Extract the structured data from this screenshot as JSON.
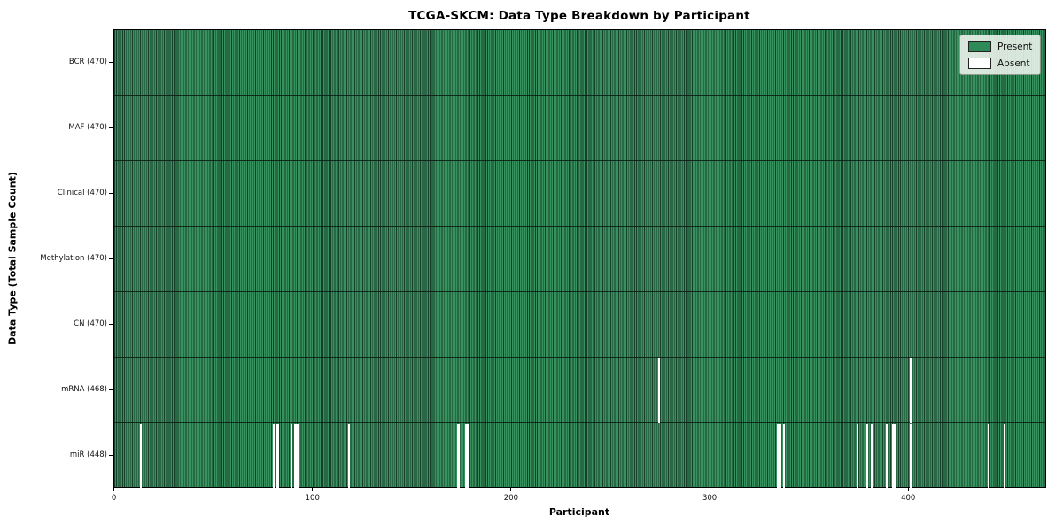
{
  "chart_data": {
    "type": "heatmap",
    "title": "TCGA-SKCM: Data Type Breakdown by Participant",
    "xlabel": "Participant",
    "ylabel": "Data Type (Total Sample Count)",
    "n_participants": 470,
    "x_range": [
      0,
      470
    ],
    "xticks": [
      0,
      100,
      200,
      300,
      400
    ],
    "grid": false,
    "colors": {
      "present": "#2e8b57",
      "absent": "#ffffff",
      "bar_edge": "#16402a",
      "row_divider": "#1a291e",
      "legend_bg": "#eef2ec",
      "legend_border": "#8f9a8f"
    },
    "legend": {
      "position": "upper-right",
      "entries": [
        {
          "label": "Present",
          "color": "#2e8b57"
        },
        {
          "label": "Absent",
          "color": "#ffffff"
        }
      ]
    },
    "rows": [
      {
        "label": "BCR (470)",
        "data_type": "BCR",
        "present_count": 470,
        "absent_participants": []
      },
      {
        "label": "MAF (470)",
        "data_type": "MAF",
        "present_count": 470,
        "absent_participants": []
      },
      {
        "label": "Clinical (470)",
        "data_type": "Clinical",
        "present_count": 470,
        "absent_participants": []
      },
      {
        "label": "Methylation (470)",
        "data_type": "Methylation",
        "present_count": 470,
        "absent_participants": []
      },
      {
        "label": "CN (470)",
        "data_type": "CN",
        "present_count": 470,
        "absent_participants": []
      },
      {
        "label": "mRNA (468)",
        "data_type": "mRNA",
        "present_count": 468,
        "absent_participants": [
          274,
          401
        ]
      },
      {
        "label": "miR (448)",
        "data_type": "miR",
        "present_count": 448,
        "absent_participants": [
          13,
          80,
          82,
          89,
          91,
          92,
          118,
          173,
          177,
          178,
          334,
          335,
          337,
          374,
          379,
          381,
          389,
          392,
          393,
          401,
          440,
          448
        ]
      }
    ]
  }
}
